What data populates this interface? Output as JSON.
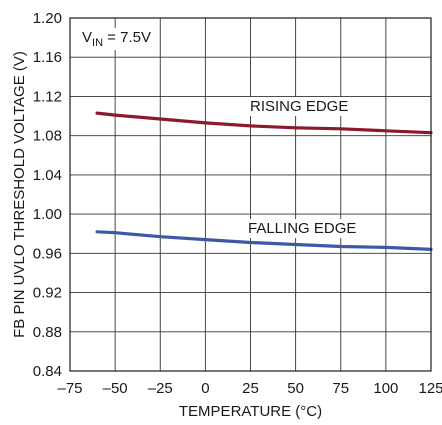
{
  "chart_data": {
    "type": "line",
    "xlabel": "TEMPERATURE (°C)",
    "ylabel": "FB PIN UVLO THRESHOLD VOLTAGE (V)",
    "xlim": [
      -75,
      125
    ],
    "ylim": [
      0.84,
      1.2
    ],
    "xticks": [
      "–75",
      "–50",
      "–25",
      "0",
      "25",
      "50",
      "75",
      "100",
      "125"
    ],
    "yticks": [
      "0.84",
      "0.88",
      "0.92",
      "0.96",
      "1.00",
      "1.04",
      "1.08",
      "1.12",
      "1.16",
      "1.20"
    ],
    "grid": true,
    "condition": {
      "base": "V",
      "sub": "IN",
      "rest": " = 7.5V"
    },
    "series": [
      {
        "name": "RISING EDGE",
        "color": "#8b1a2e",
        "x": [
          -60,
          -50,
          -25,
          0,
          25,
          50,
          75,
          100,
          125
        ],
        "y": [
          1.103,
          1.101,
          1.097,
          1.093,
          1.09,
          1.088,
          1.087,
          1.085,
          1.083
        ]
      },
      {
        "name": "FALLING EDGE",
        "color": "#3c58a6",
        "x": [
          -60,
          -50,
          -25,
          0,
          25,
          50,
          75,
          100,
          125
        ],
        "y": [
          0.982,
          0.981,
          0.977,
          0.974,
          0.971,
          0.969,
          0.967,
          0.966,
          0.964
        ]
      }
    ]
  }
}
